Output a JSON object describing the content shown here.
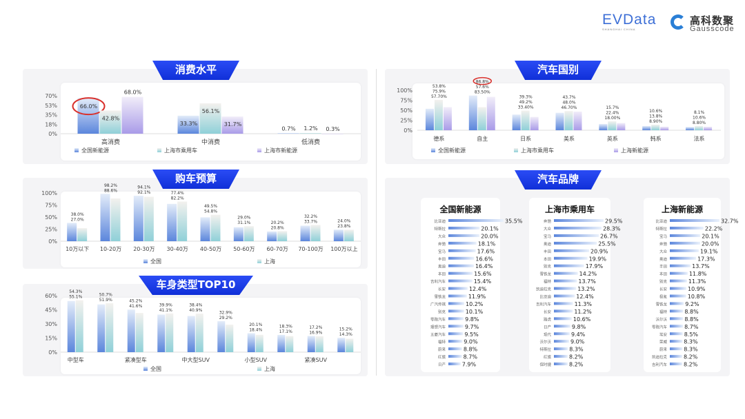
{
  "logos": {
    "evdata": "EVData",
    "evdata_sub": "SHANGHAI CHINA",
    "gausscode_cn": "高科数聚",
    "gausscode_en": "Gausscode"
  },
  "sections": {
    "consumption": "消费水平",
    "budget": "购车预算",
    "body": "车身类型TOP10",
    "country": "汽车国别",
    "brand": "汽车品牌"
  },
  "colors": {
    "banner": "#1e3fe8",
    "series_blue": "#5b86dc",
    "series_teal": "#8fd0d8",
    "series_purple": "#a99be8",
    "highlight": "#d9302b"
  },
  "chart_data": [
    {
      "id": "consumption",
      "type": "bar",
      "categories": [
        "高消费",
        "中消费",
        "低消费"
      ],
      "series": [
        {
          "name": "全国新能源",
          "values": [
            66.0,
            33.3,
            0.7
          ]
        },
        {
          "name": "上海市乘用车",
          "values": [
            42.8,
            56.1,
            1.2
          ]
        },
        {
          "name": "上海市新能源",
          "values": [
            68.0,
            31.7,
            0.3
          ]
        }
      ],
      "labels": [
        [
          "66.0%",
          "33.3%",
          "0.7%"
        ],
        [
          "42.8%",
          "56.1%",
          "1.2%"
        ],
        [
          "68.0%",
          "31.7%",
          "0.3%"
        ]
      ],
      "yticks": [
        "0%",
        "18%",
        "35%",
        "53%",
        "70%"
      ],
      "ylim": [
        0,
        70
      ],
      "legend": "bottom",
      "highlight": {
        "series": 0,
        "category": 0
      }
    },
    {
      "id": "budget",
      "type": "bar",
      "categories": [
        "10万以下",
        "10-20万",
        "20-30万",
        "30-40万",
        "40-50万",
        "50-60万",
        "60-70万",
        "70-100万",
        "100万以上"
      ],
      "series": [
        {
          "name": "全国",
          "values": [
            38.0,
            98.2,
            94.1,
            77.4,
            49.5,
            29.0,
            20.2,
            32.2,
            24.0
          ]
        },
        {
          "name": "上海",
          "values": [
            27.0,
            88.6,
            92.1,
            82.2,
            54.8,
            31.1,
            20.8,
            33.7,
            23.8
          ]
        }
      ],
      "labels": [
        [
          "38.0%",
          "98.2%",
          "94.1%",
          "77.4%",
          "49.5%",
          "29.0%",
          "20.2%",
          "32.2%",
          "24.0%"
        ],
        [
          "27.0%",
          "88.6%",
          "92.1%",
          "82.2%",
          "54.8%",
          "31.1%",
          "20.8%",
          "33.7%",
          "23.8%"
        ]
      ],
      "yticks": [
        "0%",
        "25%",
        "50%",
        "75%",
        "100%"
      ],
      "ylim": [
        0,
        100
      ],
      "legend": "bottom"
    },
    {
      "id": "body",
      "type": "bar",
      "categories": [
        "中型车",
        "",
        "紧凑型车",
        "",
        "中大型SUV",
        "",
        "小型SUV",
        "",
        "紧凑SUV",
        ""
      ],
      "series": [
        {
          "name": "全国",
          "values": [
            54.3,
            50.7,
            45.2,
            39.9,
            38.4,
            32.9,
            20.1,
            18.3,
            17.2,
            15.2
          ]
        },
        {
          "name": "上海",
          "values": [
            55.1,
            51.9,
            41.6,
            41.1,
            40.9,
            29.2,
            18.4,
            17.1,
            16.9,
            14.3
          ]
        }
      ],
      "labels": [
        [
          "54.3%",
          "50.7%",
          "45.2%",
          "39.9%",
          "38.4%",
          "32.9%",
          "20.1%",
          "18.3%",
          "17.2%",
          "15.2%"
        ],
        [
          "55.1%",
          "51.9%",
          "41.6%",
          "41.1%",
          "40.9%",
          "29.2%",
          "18.4%",
          "17.1%",
          "16.9%",
          "14.3%"
        ]
      ],
      "yticks": [
        "0%",
        "15%",
        "30%",
        "45%",
        "60%"
      ],
      "ylim": [
        0,
        60
      ],
      "legend": "bottom"
    },
    {
      "id": "country",
      "type": "bar",
      "categories": [
        "德系",
        "自主",
        "日系",
        "美系",
        "英系",
        "韩系",
        "法系"
      ],
      "series": [
        {
          "name": "全国新能源",
          "values": [
            53.8,
            86.8,
            39.3,
            43.7,
            15.7,
            10.6,
            8.1
          ]
        },
        {
          "name": "上海市乘用车",
          "values": [
            75.9,
            57.6,
            49.2,
            48.0,
            22.4,
            13.8,
            10.6
          ]
        },
        {
          "name": "上海新能源",
          "values": [
            57.7,
            83.5,
            33.4,
            46.7,
            18.0,
            8.9,
            8.8
          ]
        }
      ],
      "labels": [
        [
          "53.8%",
          "86.8%",
          "39.3%",
          "43.7%",
          "15.7%",
          "10.6%",
          "8.1%"
        ],
        [
          "75.9%",
          "57.6%",
          "49.2%",
          "48.0%",
          "22.4%",
          "13.8%",
          "10.6%"
        ],
        [
          "57.70%",
          "83.50%",
          "33.40%",
          "46.70%",
          "18.00%",
          "8.90%",
          "8.80%"
        ]
      ],
      "yticks": [
        "0%",
        "25%",
        "50%",
        "75%",
        "100%"
      ],
      "ylim": [
        0,
        100
      ],
      "legend": "bottom",
      "highlight": {
        "series": 0,
        "category": 1
      }
    },
    {
      "id": "brand-national-nev",
      "type": "bar",
      "orientation": "horizontal",
      "title": "全国新能源",
      "categories": [
        "比亚迪",
        "特斯拉",
        "大众",
        "奔驰",
        "宝马",
        "丰田",
        "奥迪",
        "本田",
        "吉利汽车",
        "长安",
        "雪铁龙",
        "广汽传祺",
        "别克",
        "零跑汽车",
        "理想汽车",
        "五菱汽车",
        "福特",
        "蔚来",
        "红旗",
        "日产"
      ],
      "values": [
        35.5,
        20.1,
        20.0,
        18.1,
        17.6,
        16.6,
        16.4,
        15.6,
        15.4,
        12.4,
        11.9,
        10.2,
        10.1,
        9.8,
        9.7,
        9.5,
        9.0,
        8.8,
        8.7,
        7.9
      ]
    },
    {
      "id": "brand-shanghai-passenger",
      "type": "bar",
      "orientation": "horizontal",
      "title": "上海市乘用车",
      "categories": [
        "奔驰",
        "大众",
        "宝马",
        "奥迪",
        "丰田",
        "本田",
        "别克",
        "雪铁龙",
        "福特",
        "凯迪拉克",
        "比亚迪",
        "吉利汽车",
        "长安",
        "路虎",
        "日产",
        "现代",
        "沃尔沃",
        "特斯拉",
        "红旗",
        "保时捷"
      ],
      "values": [
        29.5,
        28.3,
        26.7,
        25.5,
        20.9,
        19.9,
        17.9,
        14.2,
        13.7,
        13.2,
        12.4,
        11.3,
        11.2,
        10.6,
        9.8,
        9.4,
        9.0,
        8.3,
        8.2,
        8.2
      ]
    },
    {
      "id": "brand-shanghai-nev",
      "type": "bar",
      "orientation": "horizontal",
      "title": "上海新能源",
      "categories": [
        "比亚迪",
        "特斯拉",
        "宝马",
        "奔驰",
        "大众",
        "奥迪",
        "丰田",
        "本田",
        "别克",
        "长安",
        "极氪",
        "雪铁龙",
        "福特",
        "沃尔沃",
        "零跑汽车",
        "埃安",
        "荣威",
        "蔚来",
        "凯迪拉克",
        "吉利汽车"
      ],
      "values": [
        32.7,
        22.2,
        20.1,
        20.0,
        19.1,
        17.3,
        13.7,
        11.8,
        11.3,
        10.9,
        10.8,
        9.2,
        8.8,
        8.8,
        8.7,
        8.5,
        8.3,
        8.3,
        8.2,
        8.2
      ]
    }
  ]
}
